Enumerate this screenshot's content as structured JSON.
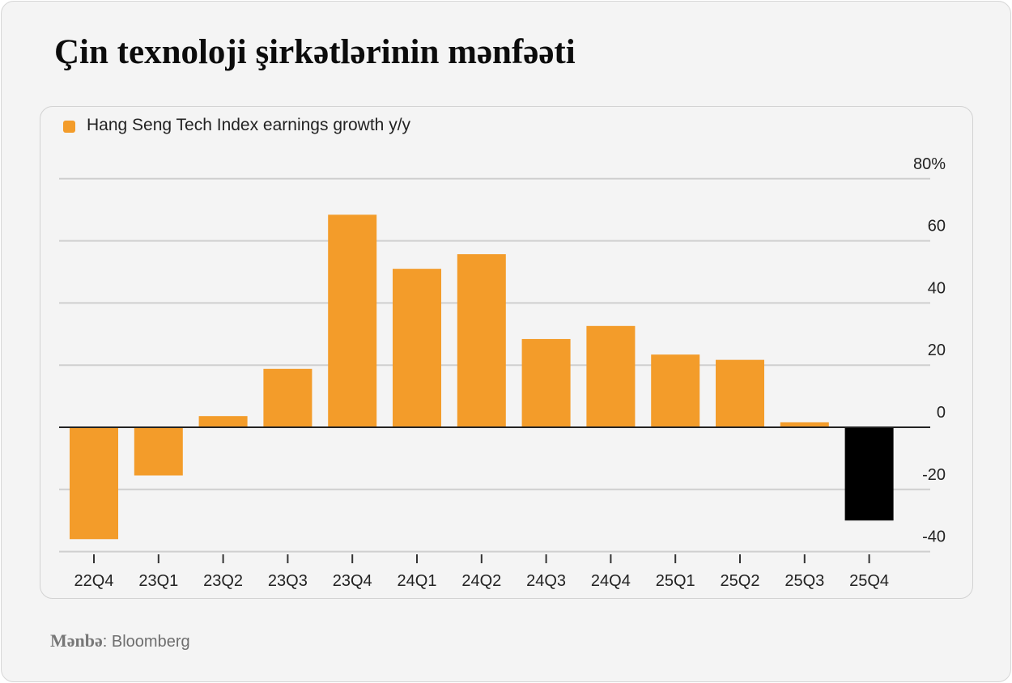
{
  "title": "Çin texnoloji şirkətlərinin mənfəəti",
  "source": {
    "label": "Mənbə",
    "separator": ": ",
    "value": "Bloomberg"
  },
  "chart_data": {
    "type": "bar",
    "title": "Çin texnoloji şirkətlərinin mənfəəti",
    "xlabel": "",
    "ylabel": "",
    "legend": {
      "position": "top-left",
      "entries": [
        "Hang Seng Tech Index earnings growth y/y"
      ]
    },
    "categories": [
      "22Q4",
      "23Q1",
      "23Q2",
      "23Q3",
      "23Q4",
      "24Q1",
      "24Q2",
      "24Q3",
      "24Q4",
      "25Q1",
      "25Q2",
      "25Q3",
      "25Q4"
    ],
    "series": [
      {
        "name": "Hang Seng Tech Index earnings growth y/y",
        "values": [
          -36,
          -15.5,
          3.6,
          18.8,
          68.4,
          51,
          55.7,
          28.4,
          32.6,
          23.4,
          21.7,
          1.6,
          -30
        ],
        "color": "#f39c2a",
        "highlight": {
          "index": 12,
          "color": "#000000"
        }
      }
    ],
    "ylim": [
      -44,
      80
    ],
    "yticks": [
      80,
      60,
      40,
      20,
      0,
      -20,
      -40
    ],
    "ytick_labels": [
      "80%",
      "60",
      "40",
      "20",
      "0",
      "-20",
      "-40"
    ],
    "grid": true,
    "yaxis_side": "right",
    "unit": "%"
  }
}
